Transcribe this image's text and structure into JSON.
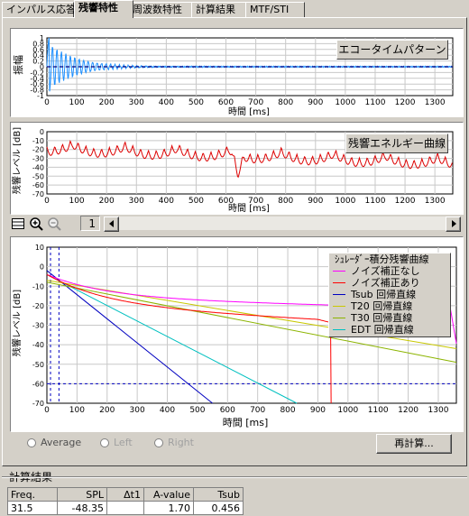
{
  "tabs": [
    "インパルス応答",
    "残響特性",
    "周波数特性",
    "計算結果",
    "MTF/STI"
  ],
  "echo": {
    "title": "エコータイムパターン",
    "ylabel": "振幅",
    "xlabel": "時間 [ms]",
    "yticks": [
      "1",
      "0.8",
      "0.6",
      "0.4",
      "0.2",
      "0",
      "-0.2",
      "-0.4",
      "-0.6",
      "-0.8",
      "-1"
    ],
    "xticks": [
      "0",
      "100",
      "200",
      "300",
      "400",
      "500",
      "600",
      "700",
      "800",
      "900",
      "1000",
      "1100",
      "1200",
      "1300"
    ]
  },
  "decay": {
    "title": "残響エネルギー曲線",
    "ylabel": "残響レベル [dB]",
    "xlabel": "時間 [ms]",
    "yticks": [
      "0",
      "-10",
      "-20",
      "-30",
      "-40",
      "-50",
      "-60",
      "-70"
    ],
    "xticks": [
      "0",
      "100",
      "200",
      "300",
      "400",
      "500",
      "600",
      "700",
      "800",
      "900",
      "1000",
      "1100",
      "1200",
      "1300"
    ]
  },
  "toolbar": {
    "page": "1"
  },
  "schroeder": {
    "ylabel": "残響レベル [dB]",
    "xlabel": "時間 [ms]",
    "yticks": [
      "10",
      "0",
      "-10",
      "-20",
      "-30",
      "-40",
      "-50",
      "-60",
      "-70"
    ],
    "xticks": [
      "0",
      "100",
      "200",
      "300",
      "400",
      "500",
      "600",
      "700",
      "800",
      "900",
      "1000",
      "1100",
      "1200",
      "1300"
    ],
    "legend_title": "ｼｭﾚｰﾀﾞｰ積分残響曲線",
    "legend": [
      {
        "label": "ノイズ補正なし",
        "color": "#ff00ff"
      },
      {
        "label": "ノイズ補正あり",
        "color": "#ff0000"
      },
      {
        "label": "Tsub 回帰直線",
        "color": "#0000c0"
      },
      {
        "label": "T20 回帰直線",
        "color": "#c8c800"
      },
      {
        "label": "T30 回帰直線",
        "color": "#8cb400"
      },
      {
        "label": "EDT 回帰直線",
        "color": "#00c0c0"
      }
    ]
  },
  "controls": {
    "average": "Average",
    "left": "Left",
    "right": "Right",
    "recalc": "再計算..."
  },
  "results": {
    "title": "計算結果",
    "headers": [
      "Freq.",
      "SPL",
      "Δt1",
      "A-value",
      "Tsub"
    ],
    "row": [
      "31.5",
      "-48.35",
      "",
      "1.70",
      "0.456"
    ]
  }
}
